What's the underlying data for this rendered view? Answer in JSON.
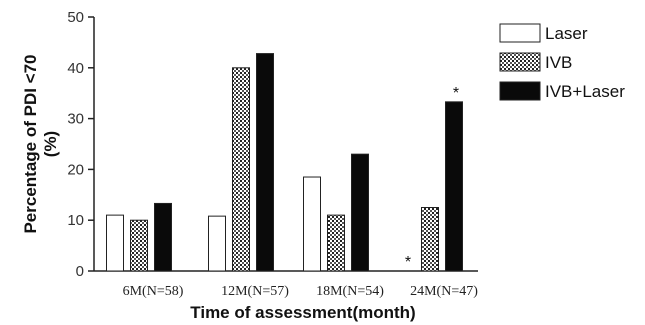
{
  "chart_data": {
    "type": "bar",
    "categories": [
      "6M(N=58)",
      "12M(N=57)",
      "18M(N=54)",
      "24M(N=47)"
    ],
    "series": [
      {
        "name": "Laser",
        "values": [
          11,
          10.8,
          18.5,
          0
        ],
        "color": "#ffffff",
        "pattern": "none"
      },
      {
        "name": "IVB",
        "values": [
          10,
          40,
          11,
          12.5
        ],
        "color": "#ffffff",
        "pattern": "dots"
      },
      {
        "name": "IVB+Laser",
        "values": [
          13.3,
          42.8,
          23,
          33.3
        ],
        "color": "#0a0a0a",
        "pattern": "solid"
      }
    ],
    "xlabel": "Time of assessment(month)",
    "ylabel_line1": "Percentage of PDI <70",
    "ylabel_line2": "(%)",
    "yticks": [
      "0",
      "10",
      "20",
      "30",
      "40",
      "50"
    ],
    "ylim": [
      0,
      50
    ],
    "legend_position": "top-right",
    "annotations": [
      {
        "text": "*",
        "category": "24M(N=47)",
        "series": "Laser"
      },
      {
        "text": "*",
        "category": "24M(N=47)",
        "series": "IVB+Laser"
      }
    ],
    "grid": false
  }
}
